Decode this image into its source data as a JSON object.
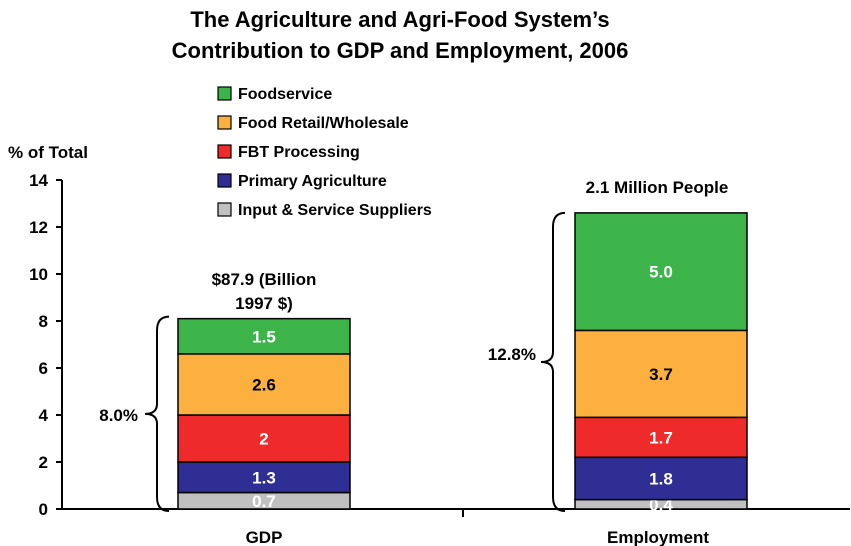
{
  "chart_data": {
    "type": "bar",
    "stacked": true,
    "title": [
      "The Agriculture and Agri-Food System’s",
      "Contribution to GDP and Employment, 2006"
    ],
    "ylabel": "% of Total",
    "ylim": [
      0,
      14
    ],
    "yticks": [
      "0",
      "2",
      "4",
      "6",
      "8",
      "10",
      "12",
      "14"
    ],
    "categories": [
      "GDP",
      "Employment"
    ],
    "category_notes": [
      "$87.9 (Billion\n1997 $)",
      "2.1 Million People"
    ],
    "totals": [
      "8.0%",
      "12.8%"
    ],
    "series": [
      {
        "name": "Input & Service Suppliers",
        "color": "#c0c0c0",
        "values": [
          0.7,
          0.4
        ],
        "labels": [
          "0.7",
          "0.4"
        ],
        "label_color": "#ffffff"
      },
      {
        "name": "Primary Agriculture",
        "color": "#2e2e94",
        "values": [
          1.3,
          1.8
        ],
        "labels": [
          "1.3",
          "1.8"
        ],
        "label_color": "#ffffff"
      },
      {
        "name": "FBT Processing",
        "color": "#ee2a2a",
        "values": [
          2.0,
          1.7
        ],
        "labels": [
          "2",
          "1.7"
        ],
        "label_color": "#ffffff"
      },
      {
        "name": "Food Retail/Wholesale",
        "color": "#fbb040",
        "values": [
          2.6,
          3.7
        ],
        "labels": [
          "2.6",
          "3.7"
        ],
        "label_color": "#000000"
      },
      {
        "name": "Foodservice",
        "color": "#3cb44a",
        "values": [
          1.5,
          5.0
        ],
        "labels": [
          "1.5",
          "5.0"
        ],
        "label_color": "#ffffff"
      }
    ],
    "legend_order": [
      "Foodservice",
      "Food Retail/Wholesale",
      "FBT Processing",
      "Primary Agriculture",
      "Input & Service Suppliers"
    ],
    "legend_position": "top-center",
    "grid": false
  }
}
